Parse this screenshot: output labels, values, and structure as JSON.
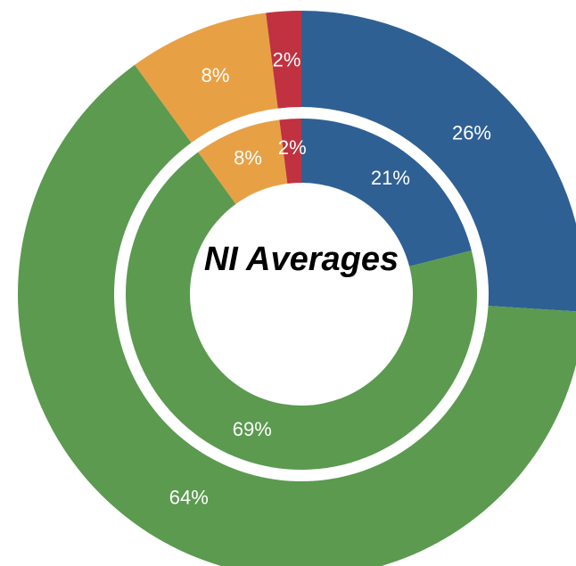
{
  "chart_data": {
    "type": "donut",
    "title": "NI Averages",
    "colors": [
      "#2e6094",
      "#5b9a4f",
      "#e8a045",
      "#c03240"
    ],
    "series": [
      {
        "values": [
          26,
          64,
          8,
          2
        ],
        "value_labels": [
          "26%",
          "64%",
          "8%",
          "2%"
        ]
      },
      {
        "values": [
          21,
          69,
          8,
          2
        ],
        "value_labels": [
          "21%",
          "69%",
          "8%",
          "2%"
        ]
      }
    ]
  }
}
